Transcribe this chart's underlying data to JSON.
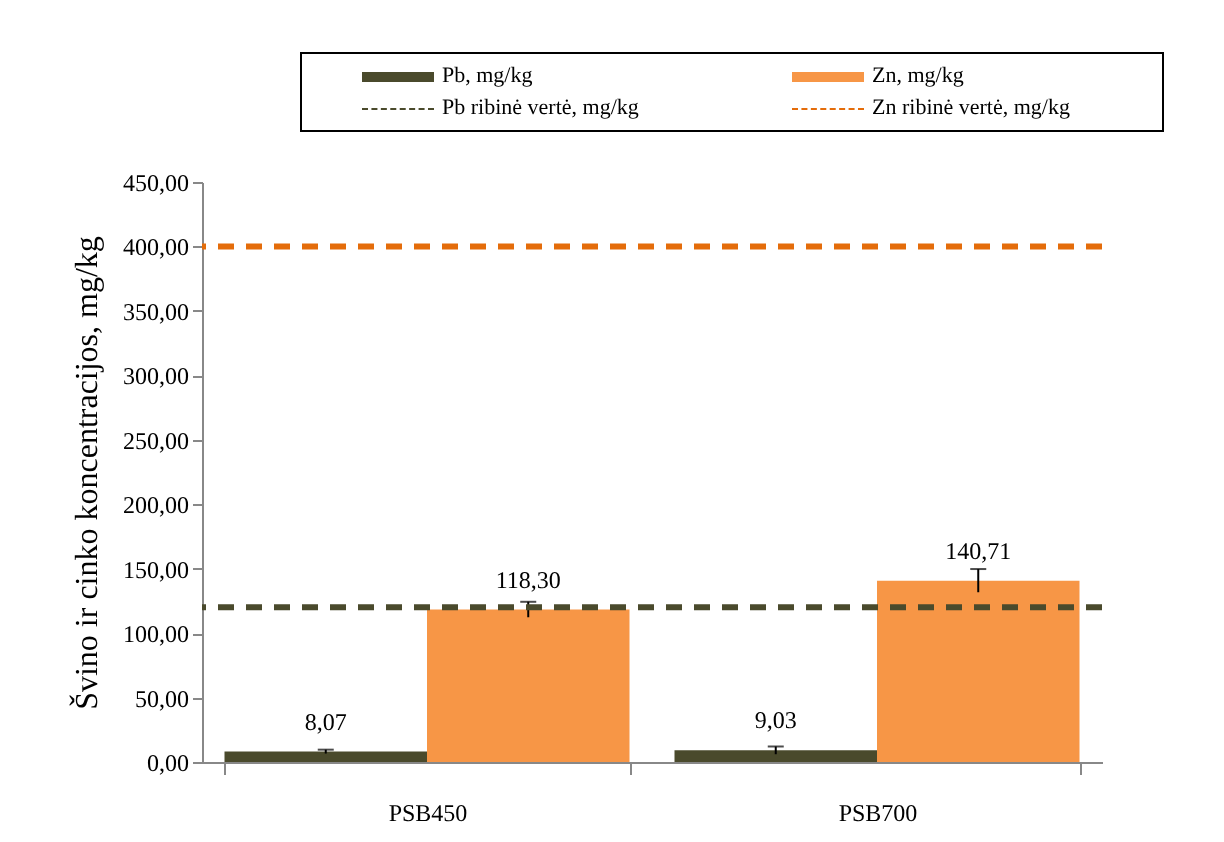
{
  "chart_data": {
    "type": "bar",
    "ylabel": "Švino ir cinko koncentracijos, mg/kg",
    "categories": [
      "PSB450",
      "PSB700"
    ],
    "series": [
      {
        "name": "Pb, mg/kg",
        "color": "#4a4a2c",
        "values": [
          8.07,
          9.03
        ],
        "errors": [
          1.5,
          3
        ],
        "value_labels": [
          "8,07",
          "9,03"
        ]
      },
      {
        "name": "Zn, mg/kg",
        "color": "#f79646",
        "values": [
          118.3,
          140.71
        ],
        "errors": [
          6,
          9
        ],
        "value_labels": [
          "118,30",
          "140,71"
        ]
      }
    ],
    "ref_lines": [
      {
        "axis": "y",
        "value": 120,
        "label": "Pb ribinė vertė, mg/kg",
        "color": "#4a4a2c",
        "line_style": "dashed"
      },
      {
        "axis": "y",
        "value": 400,
        "label": "Zn ribinė vertė, mg/kg",
        "color": "#e46c0a",
        "line_style": "dashed"
      }
    ],
    "ylim": [
      0,
      450
    ],
    "yticks": [
      {
        "value": 0,
        "label": "0,00"
      },
      {
        "value": 50,
        "label": "50,00"
      },
      {
        "value": 100,
        "label": "100,00"
      },
      {
        "value": 150,
        "label": "150,00"
      },
      {
        "value": 200,
        "label": "200,00"
      },
      {
        "value": 250,
        "label": "250,00"
      },
      {
        "value": 300,
        "label": "300,00"
      },
      {
        "value": 350,
        "label": "350,00"
      },
      {
        "value": 400,
        "label": "400,00"
      },
      {
        "value": 450,
        "label": "450,00"
      }
    ],
    "grid": false,
    "legend": "top"
  }
}
